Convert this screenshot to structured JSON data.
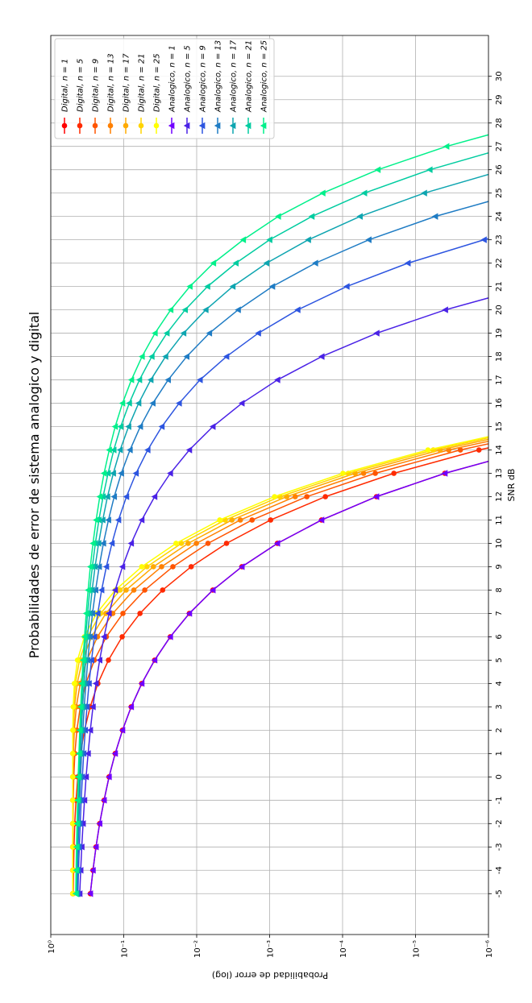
{
  "chart_data": {
    "type": "line",
    "title": "Probabilidades de error de sistema analogico y digital",
    "x_label": "SNR dB",
    "y_label": "Probabilidad de error (log)",
    "x": [
      -5,
      -4,
      -3,
      -2,
      -1,
      0,
      1,
      2,
      3,
      4,
      5,
      6,
      7,
      8,
      9,
      10,
      11,
      12,
      13,
      14,
      15,
      16,
      17,
      18,
      19,
      20,
      21,
      22,
      23,
      24,
      25,
      26,
      27,
      28,
      29,
      30
    ],
    "xlim": [
      -6.75,
      31.75
    ],
    "xticks": [
      -5,
      -4,
      -3,
      -2,
      -1,
      0,
      1,
      2,
      3,
      4,
      5,
      6,
      7,
      8,
      9,
      10,
      11,
      12,
      13,
      14,
      15,
      16,
      17,
      18,
      19,
      20,
      21,
      22,
      23,
      24,
      25,
      26,
      27,
      28,
      29,
      30
    ],
    "ylim": [
      1e-06,
      1
    ],
    "ylog": true,
    "yticks": [
      {
        "value": 1,
        "label": "10⁰"
      },
      {
        "value": 0.1,
        "label": "10⁻¹"
      },
      {
        "value": 0.01,
        "label": "10⁻²"
      },
      {
        "value": 0.001,
        "label": "10⁻³"
      },
      {
        "value": 0.0001,
        "label": "10⁻⁴"
      },
      {
        "value": 1e-05,
        "label": "10⁻⁵"
      },
      {
        "value": 1e-06,
        "label": "10⁻⁶"
      }
    ],
    "grid": true,
    "legend": "upper right",
    "series": [
      {
        "name": "Digital, n = 1",
        "color": "#ff0000",
        "marker": "o",
        "values": [
          0.287,
          0.264,
          0.24,
          0.214,
          0.186,
          0.159,
          0.131,
          0.104,
          0.079,
          0.0566,
          0.0377,
          0.023,
          0.0126,
          0.006,
          0.0024,
          0.000783,
          0.000194,
          3.43e-05,
          3.96e-06,
          2.7e-07,
          null,
          null,
          null,
          null,
          null,
          null,
          null,
          null,
          null,
          null,
          null,
          null,
          null,
          null,
          null,
          null
        ]
      },
      {
        "name": "Digital, n = 5",
        "color": "#ff2a00",
        "marker": "o",
        "values": [
          0.493,
          0.488,
          0.481,
          0.469,
          0.451,
          0.426,
          0.391,
          0.345,
          0.288,
          0.226,
          0.162,
          0.105,
          0.0599,
          0.0293,
          0.0119,
          0.0039,
          0.00097,
          0.000172,
          1.98e-05,
          1.35e-06,
          4.7e-08,
          null,
          null,
          null,
          null,
          null,
          null,
          null,
          null,
          null,
          null,
          null,
          null,
          null,
          null,
          null
        ]
      },
      {
        "name": "Digital, n = 9",
        "color": "#ff5500",
        "marker": "o",
        "values": [
          0.4998,
          0.4994,
          0.4986,
          0.4967,
          0.4924,
          0.4839,
          0.4677,
          0.439,
          0.394,
          0.33,
          0.253,
          0.173,
          0.1026,
          0.0515,
          0.0212,
          0.007,
          0.00174,
          0.000309,
          3.56e-05,
          2.43e-06,
          8.5e-08,
          null,
          null,
          null,
          null,
          null,
          null,
          null,
          null,
          null,
          null,
          null,
          null,
          null,
          null,
          null
        ]
      },
      {
        "name": "Digital, n = 13",
        "color": "#ff8000",
        "marker": "o",
        "values": [
          0.5,
          0.5,
          0.4999,
          0.4996,
          0.4988,
          0.4965,
          0.4904,
          0.476,
          0.447,
          0.395,
          0.32,
          0.229,
          0.1412,
          0.0726,
          0.0303,
          0.0101,
          0.00252,
          0.000446,
          5.15e-05,
          3.5e-06,
          1.2e-07,
          null,
          null,
          null,
          null,
          null,
          null,
          null,
          null,
          null,
          null,
          null,
          null,
          null,
          null,
          null
        ]
      },
      {
        "name": "Digital, n = 17",
        "color": "#ffaa00",
        "marker": "o",
        "values": [
          0.5,
          0.5,
          0.5,
          0.5,
          0.4998,
          0.4992,
          0.4972,
          0.491,
          0.473,
          0.435,
          0.368,
          0.276,
          0.176,
          0.0928,
          0.0392,
          0.0131,
          0.00329,
          0.000583,
          6.73e-05,
          4.6e-06,
          1.6e-07,
          null,
          null,
          null,
          null,
          null,
          null,
          null,
          null,
          null,
          null,
          null,
          null,
          null,
          null,
          null
        ]
      },
      {
        "name": "Digital, n = 21",
        "color": "#ffd400",
        "marker": "o",
        "values": [
          0.5,
          0.5,
          0.5,
          0.5,
          0.5,
          0.4998,
          0.4992,
          0.4963,
          0.486,
          0.46,
          0.404,
          0.314,
          0.207,
          0.112,
          0.048,
          0.0162,
          0.00406,
          0.00072,
          8.32e-05,
          5.7e-06,
          2e-07,
          null,
          null,
          null,
          null,
          null,
          null,
          null,
          null,
          null,
          null,
          null,
          null,
          null,
          null,
          null
        ]
      },
      {
        "name": "Digital, n = 25",
        "color": "#ffff00",
        "marker": "o",
        "values": [
          0.5,
          0.5,
          0.5,
          0.5,
          0.5,
          0.5,
          0.4998,
          0.4986,
          0.493,
          0.475,
          0.43,
          0.346,
          0.236,
          0.13,
          0.0566,
          0.0192,
          0.00483,
          0.000856,
          9.9e-05,
          6.75e-06,
          2.35e-07,
          null,
          null,
          null,
          null,
          null,
          null,
          null,
          null,
          null,
          null,
          null,
          null,
          null,
          null,
          null
        ]
      },
      {
        "name": "Analogico, n = 1",
        "color": "#7000ff",
        "marker": "^",
        "values": [
          0.287,
          0.264,
          0.24,
          0.214,
          0.186,
          0.159,
          0.131,
          0.104,
          0.079,
          0.0566,
          0.0377,
          0.023,
          0.0126,
          0.006,
          0.0024,
          0.000783,
          0.000194,
          3.43e-05,
          3.96e-06,
          2.7e-07,
          null,
          null,
          null,
          null,
          null,
          null,
          null,
          null,
          null,
          null,
          null,
          null,
          null,
          null,
          null,
          null
        ]
      },
      {
        "name": "Analogico, n = 5",
        "color": "#4a22e6",
        "marker": "^",
        "values": [
          0.401,
          0.389,
          0.376,
          0.361,
          0.345,
          0.328,
          0.308,
          0.287,
          0.264,
          0.24,
          0.214,
          0.186,
          0.159,
          0.131,
          0.104,
          0.079,
          0.0566,
          0.0377,
          0.023,
          0.0126,
          0.006,
          0.0024,
          0.00078,
          0.000193,
          3.4e-05,
          3.9e-06,
          2.7e-07,
          null,
          null,
          null,
          null,
          null,
          null,
          null,
          null,
          null
        ]
      },
      {
        "name": "Analogico, n = 9",
        "color": "#2d55e0",
        "marker": "^",
        "values": [
          0.425,
          0.417,
          0.406,
          0.395,
          0.383,
          0.369,
          0.354,
          0.337,
          0.319,
          0.299,
          0.276,
          0.253,
          0.227,
          0.201,
          0.173,
          0.145,
          0.118,
          0.0918,
          0.0678,
          0.0469,
          0.03,
          0.0174,
          0.009,
          0.0039,
          0.00143,
          0.000412,
          8.74e-05,
          1.27e-05,
          1.15e-06,
          5.8e-08,
          null,
          null,
          null,
          null,
          null,
          null
        ]
      },
      {
        "name": "Analogico, n = 13",
        "color": "#1f7cc4",
        "marker": "^",
        "values": [
          0.438,
          0.431,
          0.422,
          0.413,
          0.402,
          0.391,
          0.378,
          0.363,
          0.348,
          0.33,
          0.311,
          0.29,
          0.268,
          0.243,
          0.217,
          0.19,
          0.162,
          0.135,
          0.108,
          0.0821,
          0.0593,
          0.0399,
          0.0246,
          0.0137,
          0.0067,
          0.0027,
          0.000916,
          0.000236,
          4.37e-05,
          5.36e-06,
          3.9e-07,
          null,
          null,
          null,
          null,
          null
        ]
      },
      {
        "name": "Analogico, n = 17",
        "color": "#0ea5b0",
        "marker": "^",
        "values": [
          0.446,
          0.439,
          0.432,
          0.424,
          0.414,
          0.404,
          0.393,
          0.38,
          0.366,
          0.35,
          0.333,
          0.314,
          0.293,
          0.271,
          0.247,
          0.221,
          0.194,
          0.167,
          0.139,
          0.112,
          0.0858,
          0.0625,
          0.0426,
          0.0267,
          0.0151,
          0.0075,
          0.0032,
          0.0011,
          0.000295,
          5.77e-05,
          7.57e-06,
          6e-07,
          null,
          null,
          null,
          null
        ]
      },
      {
        "name": "Analogico, n = 21",
        "color": "#00cca0",
        "marker": "^",
        "values": [
          0.451,
          0.445,
          0.439,
          0.431,
          0.423,
          0.414,
          0.403,
          0.392,
          0.379,
          0.365,
          0.349,
          0.332,
          0.313,
          0.292,
          0.269,
          0.245,
          0.219,
          0.192,
          0.164,
          0.137,
          0.11,
          0.084,
          0.0609,
          0.0412,
          0.0256,
          0.0144,
          0.0071,
          0.0029,
          0.001,
          0.000264,
          5.02e-05,
          6.37e-06,
          4.9e-07,
          null,
          null,
          null
        ]
      },
      {
        "name": "Analogico, n = 25",
        "color": "#00f08a",
        "marker": "^",
        "values": [
          0.455,
          0.45,
          0.444,
          0.437,
          0.429,
          0.421,
          0.411,
          0.401,
          0.389,
          0.376,
          0.361,
          0.345,
          0.327,
          0.308,
          0.287,
          0.264,
          0.239,
          0.213,
          0.186,
          0.158,
          0.131,
          0.104,
          0.0785,
          0.0561,
          0.0373,
          0.0227,
          0.0124,
          0.0059,
          0.0023,
          0.000761,
          0.000187,
          3.28e-05,
          3.75e-06,
          2.6e-07,
          null,
          null
        ]
      }
    ]
  }
}
